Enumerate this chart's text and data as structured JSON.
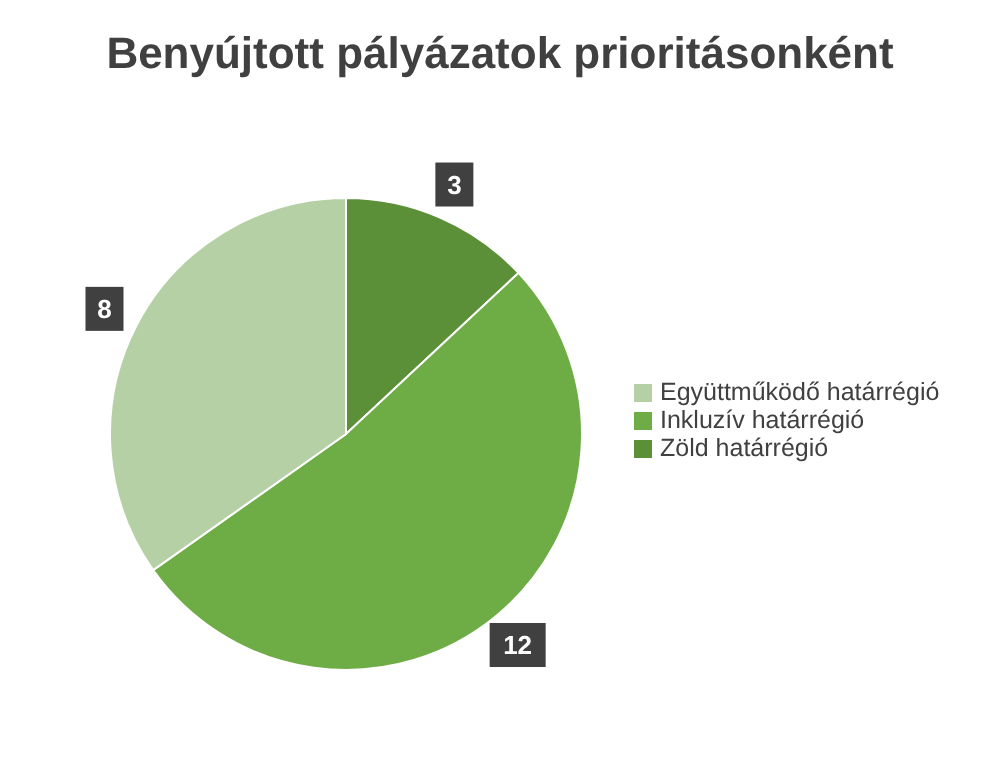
{
  "chart_data": {
    "type": "pie",
    "title": "Benyújtott pályázatok prioritásonként",
    "categories": [
      "Zöld határrégió",
      "Inkluzív határrégió",
      "Együttműködő határrégió"
    ],
    "values": [
      3,
      12,
      8
    ],
    "colors": [
      "#5b8f38",
      "#6eac46",
      "#b5d0a5"
    ],
    "data_labels": true,
    "legend": "right"
  }
}
